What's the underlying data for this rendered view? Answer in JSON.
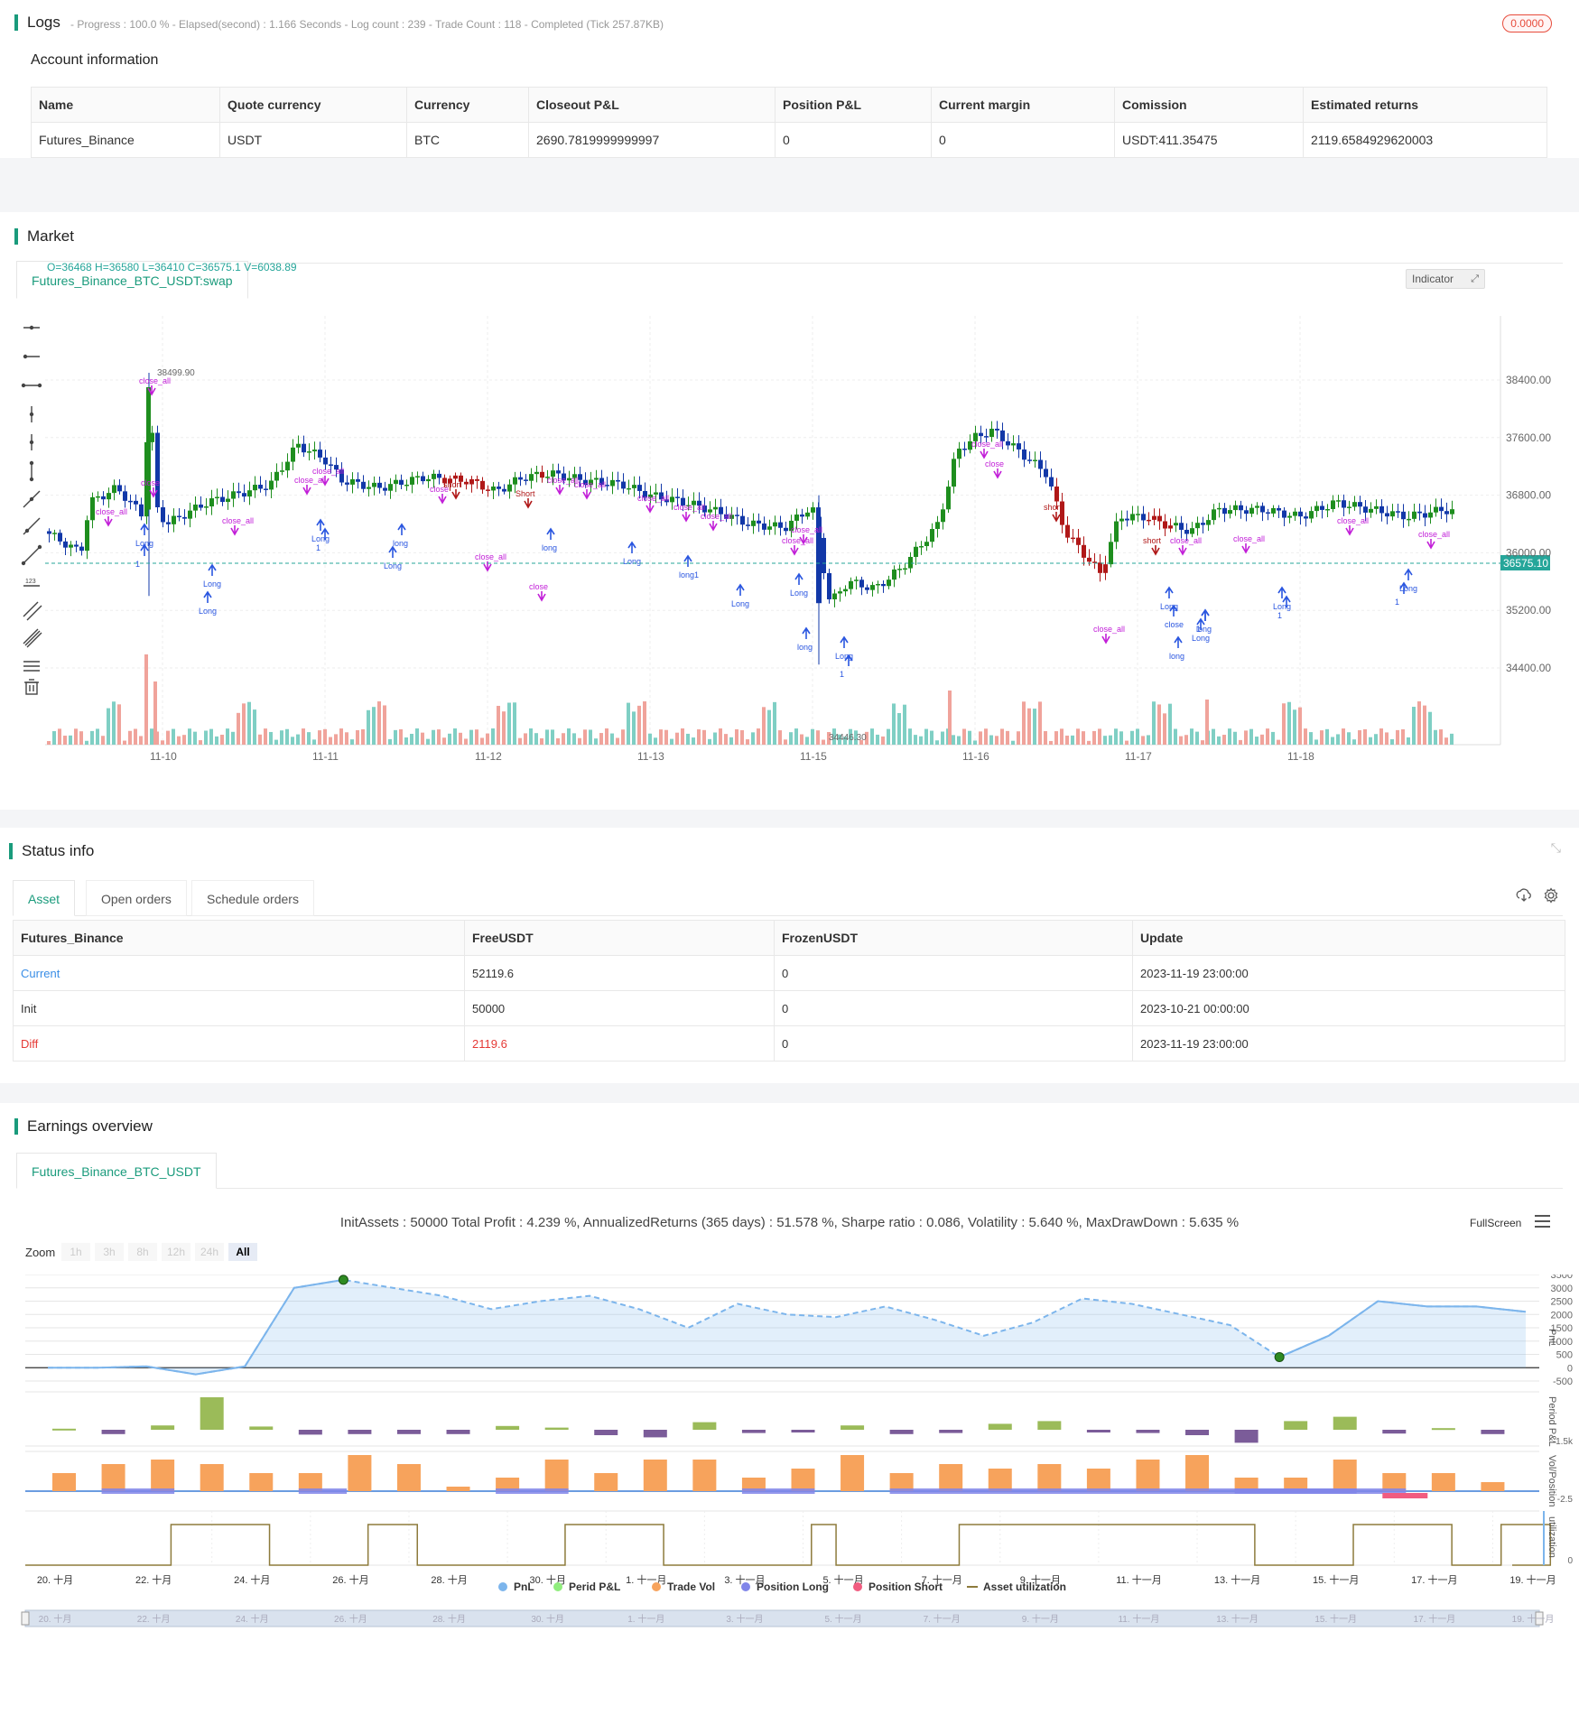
{
  "logs": {
    "title": "Logs",
    "summary": "- Progress : 100.0 % - Elapsed(second) : 1.166  Seconds - Log count : 239 - Trade Count : 118 - Completed (Tick 257.87KB)",
    "badge": "0.0000",
    "badge_color": "#e74c3c"
  },
  "account": {
    "title": "Account information",
    "headers": [
      "Name",
      "Quote currency",
      "Currency",
      "Closeout P&L",
      "Position P&L",
      "Current margin",
      "Comission",
      "Estimated returns"
    ],
    "row": [
      "Futures_Binance",
      "USDT",
      "BTC",
      "2690.7819999999997",
      "0",
      "0",
      "USDT:411.35475",
      "2119.6584929620003"
    ]
  },
  "market": {
    "title": "Market",
    "tab": "Futures_Binance_BTC_USDT:swap",
    "ohlc": "O=36468 H=36580 L=36410 C=36575.1 V=6038.89",
    "indicator_btn": "Indicator",
    "last_price": "36575.10",
    "high_label": "38499.90",
    "low_label": "34446.30",
    "y_ticks": [
      "38400.00",
      "37600.00",
      "36800.00",
      "36000.00",
      "35200.00",
      "34400.00"
    ],
    "x_ticks": [
      "11-10",
      "11-11",
      "11-12",
      "11-13",
      "11-15",
      "11-16",
      "11-17",
      "11-18"
    ],
    "colors": {
      "up": "#1e8e1e",
      "down": "#1238a8",
      "short": "#b01818",
      "marker_purple": "#c21fd8",
      "marker_blue": "#2a56e0",
      "last_price_bg": "#26a69a"
    }
  },
  "status": {
    "title": "Status info",
    "tabs": [
      "Asset",
      "Open orders",
      "Schedule orders"
    ],
    "headers": [
      "Futures_Binance",
      "FreeUSDT",
      "FrozenUSDT",
      "Update"
    ],
    "rows": [
      {
        "label": "Current",
        "free": "52119.6",
        "frozen": "0",
        "update": "2023-11-19 23:00:00"
      },
      {
        "label": "Init",
        "free": "50000",
        "frozen": "0",
        "update": "2023-10-21 00:00:00"
      },
      {
        "label": "Diff",
        "free": "2119.6",
        "frozen": "0",
        "update": "2023-11-19 23:00:00"
      }
    ]
  },
  "earnings": {
    "title": "Earnings overview",
    "tab": "Futures_Binance_BTC_USDT",
    "summary": "InitAssets : 50000 Total Profit : 4.239 %, AnnualizedReturns (365 days) : 51.578 %, Sharpe ratio : 0.086, Volatility : 5.640 %, MaxDrawDown : 5.635 %",
    "fullscreen": "FullScreen",
    "zoom_label": "Zoom",
    "zoom_options": [
      "1h",
      "3h",
      "8h",
      "12h",
      "24h",
      "All"
    ],
    "pnl_ticks": [
      "3500",
      "3000",
      "2500",
      "2000",
      "1500",
      "1000",
      "500",
      "0",
      "-500"
    ],
    "pnl_axis": "PnL",
    "period_axis": "Period P&L",
    "period_tick": "-1.5k",
    "vol_axis": "Vol/Position",
    "vol_tick": "-2.5",
    "util_axis": "utilization",
    "util_tick": "0",
    "x_ticks": [
      "20. 十月",
      "22. 十月",
      "24. 十月",
      "26. 十月",
      "28. 十月",
      "30. 十月",
      "1. 十一月",
      "3. 十一月",
      "5. 十一月",
      "7. 十一月",
      "9. 十一月",
      "11. 十一月",
      "13. 十一月",
      "15. 十一月",
      "17. 十一月",
      "19. 十一月"
    ],
    "legend": [
      {
        "name": "PnL",
        "color": "#7cb5ec"
      },
      {
        "name": "Perid P&L",
        "color": "#90ed7d"
      },
      {
        "name": "Trade Vol",
        "color": "#f7a35c"
      },
      {
        "name": "Position Long",
        "color": "#8085e9"
      },
      {
        "name": "Position Short",
        "color": "#f15c80"
      },
      {
        "name": "Asset utilization",
        "color": "#8d7b3c"
      }
    ]
  },
  "chart_data": {
    "type": "line",
    "title": "",
    "ylabel": "PnL",
    "ylim": [
      -500,
      3500
    ],
    "x": [
      "20. 十月",
      "21. 十月",
      "22. 十月",
      "23. 十月",
      "24. 十月",
      "25. 十月",
      "26. 十月",
      "27. 十月",
      "28. 十月",
      "29. 十月",
      "30. 十月",
      "31. 十月",
      "1. 十一月",
      "2. 十一月",
      "3. 十一月",
      "4. 十一月",
      "5. 十一月",
      "6. 十一月",
      "7. 十一月",
      "8. 十一月",
      "9. 十一月",
      "10. 十一月",
      "11. 十一月",
      "12. 十一月",
      "13. 十一月",
      "14. 十一月",
      "15. 十一月",
      "16. 十一月",
      "17. 十一月",
      "18. 十一月",
      "19. 十一月"
    ],
    "series": [
      {
        "name": "PnL",
        "values": [
          0,
          0,
          50,
          -250,
          50,
          3000,
          3300,
          3000,
          2700,
          2200,
          2500,
          2700,
          2200,
          1500,
          2400,
          2000,
          1900,
          2300,
          1800,
          1200,
          1700,
          2600,
          2400,
          2000,
          1600,
          400,
          1200,
          2500,
          2300,
          2300,
          2100
        ]
      }
    ]
  }
}
